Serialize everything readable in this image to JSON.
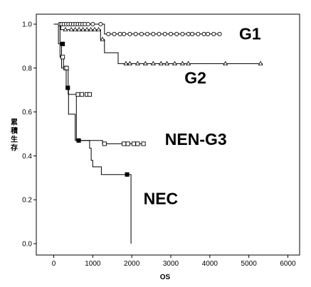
{
  "chart_data": {
    "type": "line",
    "title": "",
    "xlabel": "OS",
    "ylabel": "累積生存",
    "xlim": [
      0,
      6000
    ],
    "ylim": [
      0.0,
      1.0
    ],
    "x_ticks": [
      "0",
      "1000",
      "2000",
      "3000",
      "4000",
      "5000",
      "6000"
    ],
    "y_ticks": [
      "0.0",
      "0.2",
      "0.4",
      "0.6",
      "0.8",
      "1.0"
    ],
    "grid": false,
    "series": [
      {
        "name": "G1",
        "marker": "circle",
        "steps": [
          [
            0,
            1.0
          ],
          [
            1300,
            1.0
          ],
          [
            1300,
            0.955
          ],
          [
            4300,
            0.955
          ]
        ],
        "censored": [
          [
            160,
            1.0
          ],
          [
            200,
            1.0
          ],
          [
            260,
            1.0
          ],
          [
            320,
            1.0
          ],
          [
            380,
            1.0
          ],
          [
            440,
            1.0
          ],
          [
            500,
            1.0
          ],
          [
            560,
            1.0
          ],
          [
            620,
            1.0
          ],
          [
            680,
            1.0
          ],
          [
            740,
            1.0
          ],
          [
            800,
            1.0
          ],
          [
            880,
            1.0
          ],
          [
            1000,
            1.0
          ],
          [
            1200,
            1.0
          ],
          [
            1400,
            0.955
          ],
          [
            1550,
            0.955
          ],
          [
            1700,
            0.955
          ],
          [
            1800,
            0.955
          ],
          [
            1950,
            0.955
          ],
          [
            2100,
            0.955
          ],
          [
            2250,
            0.955
          ],
          [
            2400,
            0.955
          ],
          [
            2550,
            0.955
          ],
          [
            2700,
            0.955
          ],
          [
            2850,
            0.955
          ],
          [
            3000,
            0.955
          ],
          [
            3150,
            0.955
          ],
          [
            3300,
            0.955
          ],
          [
            3450,
            0.955
          ],
          [
            3550,
            0.955
          ],
          [
            3700,
            0.955
          ],
          [
            3850,
            0.955
          ],
          [
            3950,
            0.955
          ],
          [
            4100,
            0.955
          ],
          [
            4250,
            0.955
          ]
        ]
      },
      {
        "name": "G2",
        "marker": "triangle",
        "steps": [
          [
            0,
            1.0
          ],
          [
            180,
            1.0
          ],
          [
            180,
            0.975
          ],
          [
            1200,
            0.975
          ],
          [
            1200,
            0.93
          ],
          [
            1300,
            0.93
          ],
          [
            1300,
            0.87
          ],
          [
            1650,
            0.87
          ],
          [
            1650,
            0.82
          ],
          [
            5350,
            0.82
          ]
        ],
        "censored": [
          [
            300,
            0.975
          ],
          [
            450,
            0.975
          ],
          [
            550,
            0.975
          ],
          [
            650,
            0.975
          ],
          [
            750,
            0.975
          ],
          [
            850,
            0.975
          ],
          [
            950,
            0.975
          ],
          [
            1050,
            0.975
          ],
          [
            1150,
            0.975
          ],
          [
            1250,
            0.93
          ],
          [
            1850,
            0.82
          ],
          [
            1950,
            0.82
          ],
          [
            2150,
            0.82
          ],
          [
            2350,
            0.82
          ],
          [
            2550,
            0.82
          ],
          [
            2750,
            0.82
          ],
          [
            2900,
            0.82
          ],
          [
            3100,
            0.82
          ],
          [
            3300,
            0.82
          ],
          [
            3450,
            0.82
          ],
          [
            4400,
            0.82
          ],
          [
            5300,
            0.82
          ]
        ]
      },
      {
        "name": "NEN-G3",
        "marker": "square-open",
        "steps": [
          [
            0,
            1.0
          ],
          [
            160,
            1.0
          ],
          [
            160,
            0.85
          ],
          [
            250,
            0.85
          ],
          [
            250,
            0.8
          ],
          [
            370,
            0.8
          ],
          [
            370,
            0.68
          ],
          [
            580,
            0.68
          ],
          [
            580,
            0.47
          ],
          [
            1250,
            0.47
          ],
          [
            1250,
            0.455
          ],
          [
            2350,
            0.455
          ]
        ],
        "censored": [
          [
            230,
            0.85
          ],
          [
            300,
            0.8
          ],
          [
            330,
            0.8
          ],
          [
            620,
            0.68
          ],
          [
            720,
            0.68
          ],
          [
            850,
            0.68
          ],
          [
            920,
            0.68
          ],
          [
            1300,
            0.455
          ],
          [
            1800,
            0.455
          ],
          [
            1900,
            0.455
          ],
          [
            2050,
            0.455
          ],
          [
            2150,
            0.455
          ],
          [
            2300,
            0.455
          ]
        ]
      },
      {
        "name": "NEC",
        "marker": "square-filled",
        "steps": [
          [
            0,
            1.0
          ],
          [
            120,
            1.0
          ],
          [
            120,
            0.91
          ],
          [
            200,
            0.91
          ],
          [
            200,
            0.8
          ],
          [
            320,
            0.8
          ],
          [
            320,
            0.71
          ],
          [
            380,
            0.71
          ],
          [
            380,
            0.59
          ],
          [
            550,
            0.59
          ],
          [
            550,
            0.47
          ],
          [
            920,
            0.47
          ],
          [
            920,
            0.435
          ],
          [
            960,
            0.435
          ],
          [
            960,
            0.38
          ],
          [
            1000,
            0.38
          ],
          [
            1000,
            0.35
          ],
          [
            1220,
            0.35
          ],
          [
            1220,
            0.315
          ],
          [
            1980,
            0.315
          ],
          [
            1980,
            0.0
          ]
        ],
        "censored": [
          [
            230,
            0.91
          ],
          [
            360,
            0.71
          ],
          [
            640,
            0.47
          ],
          [
            1880,
            0.315
          ]
        ]
      }
    ],
    "labels": [
      {
        "text": "G1",
        "x": 4750,
        "y": 0.93
      },
      {
        "text": "G2",
        "x": 3350,
        "y": 0.73
      },
      {
        "text": "NEN-G3",
        "x": 2850,
        "y": 0.45
      },
      {
        "text": "NEC",
        "x": 2300,
        "y": 0.18
      }
    ]
  }
}
